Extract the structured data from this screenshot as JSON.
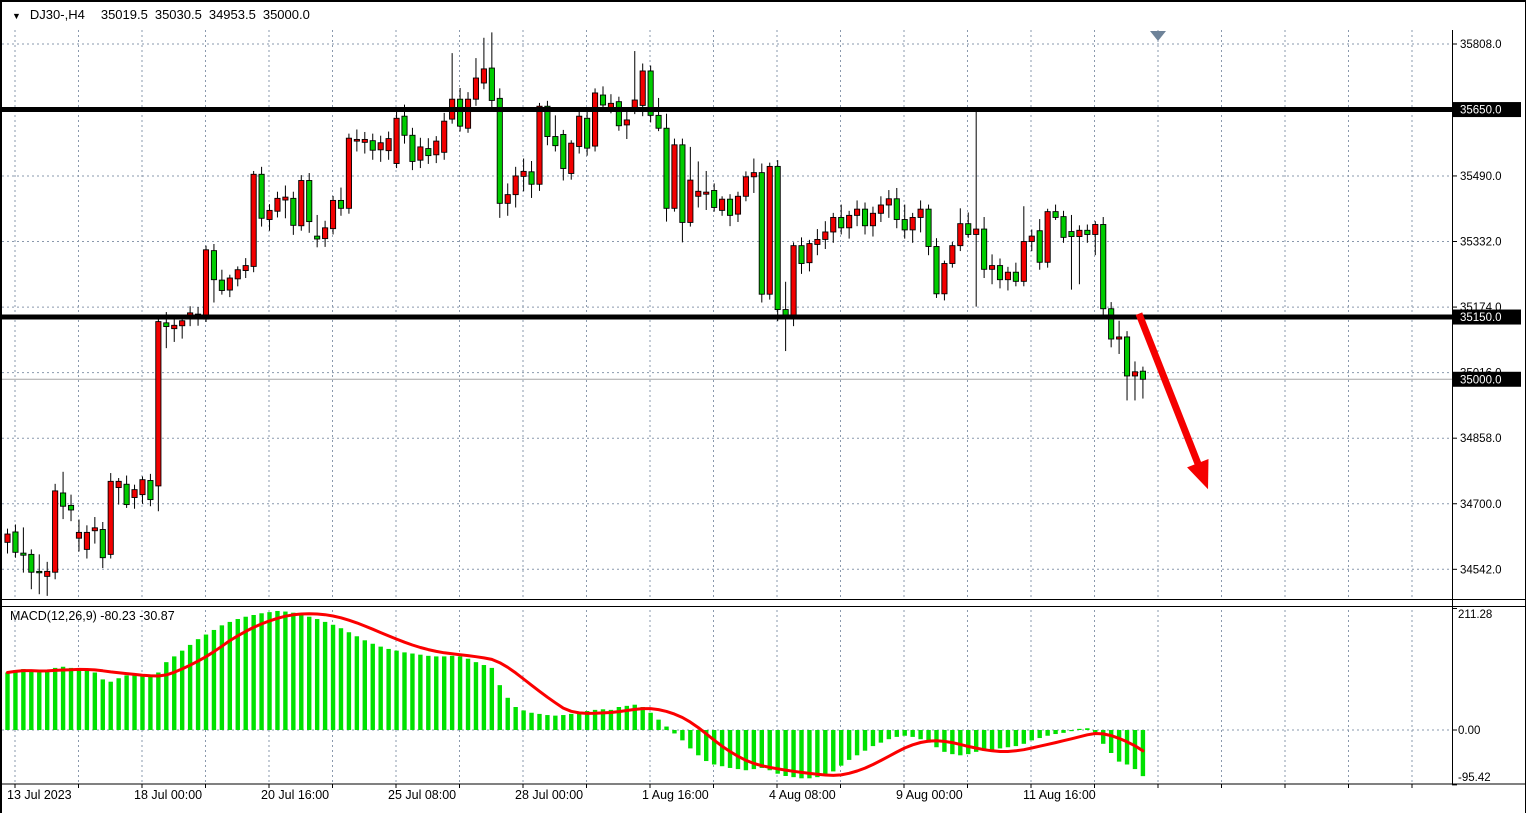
{
  "titlebar": {
    "dropdown_icon": "▼",
    "symbol_period": "DJ30-,H4",
    "open": "35019.5",
    "high": "35030.5",
    "low": "34953.5",
    "close": "35000.0"
  },
  "indicator_label": {
    "text": "MACD(12,26,9) -80.23 -30.87"
  },
  "price_axis": {
    "ticks": [
      {
        "text": "35808.0",
        "value": 35808
      },
      {
        "text": "35490.0",
        "value": 35490
      },
      {
        "text": "35332.0",
        "value": 35332
      },
      {
        "text": "35174.0",
        "value": 35174
      },
      {
        "text": "35016.0",
        "value": 35016
      },
      {
        "text": "34858.0",
        "value": 34858
      },
      {
        "text": "34700.0",
        "value": 34700
      },
      {
        "text": "34542.0",
        "value": 34542
      }
    ],
    "gridline_values": [
      35808,
      35650,
      35490,
      35332,
      35174,
      35016,
      34858,
      34700,
      34542
    ],
    "badges": [
      {
        "text": "35650.0",
        "value": 35650
      },
      {
        "text": "35150.0",
        "value": 35150
      },
      {
        "text": "35000.0",
        "value": 35000
      }
    ]
  },
  "macd_axis": {
    "ticks": [
      {
        "text": "211.28",
        "value": 211.28
      },
      {
        "text": "0.00",
        "value": 0
      },
      {
        "text": "-95.42",
        "value": -95.42
      }
    ]
  },
  "time_axis": {
    "labels": [
      {
        "text": "13 Jul 2023",
        "gridline": 0
      },
      {
        "text": "18 Jul 00:00",
        "gridline": 2
      },
      {
        "text": "20 Jul 16:00",
        "gridline": 4
      },
      {
        "text": "25 Jul 08:00",
        "gridline": 6
      },
      {
        "text": "28 Jul 00:00",
        "gridline": 8
      },
      {
        "text": "1 Aug 16:00",
        "gridline": 10
      },
      {
        "text": "4 Aug 08:00",
        "gridline": 12
      },
      {
        "text": "9 Aug 00:00",
        "gridline": 14
      },
      {
        "text": "11 Aug 16:00",
        "gridline": 16
      }
    ]
  },
  "chart_data": {
    "type": "candlestick",
    "symbol": "DJ30-",
    "timeframe": "H4",
    "title": "DJ30-,H4 35019.5 35030.5 34953.5 35000.0",
    "ylim": [
      34465,
      35840
    ],
    "grid": true,
    "last_ohlc": {
      "open": 35019.5,
      "high": 35030.5,
      "low": 34953.5,
      "close": 35000.0
    },
    "levels": [
      {
        "price": 35650,
        "style": "thick"
      },
      {
        "price": 35150,
        "style": "thick"
      },
      {
        "price": 35000,
        "style": "thin"
      }
    ],
    "candles": [
      [
        34607,
        34640,
        34580,
        34627
      ],
      [
        34632,
        34650,
        34570,
        34583
      ],
      [
        34581,
        34643,
        34534,
        34576
      ],
      [
        34578,
        34590,
        34494,
        34535
      ],
      [
        34537,
        34578,
        34482,
        34534
      ],
      [
        34525,
        34560,
        34478,
        34537
      ],
      [
        34535,
        34748,
        34518,
        34731
      ],
      [
        34726,
        34777,
        34663,
        34694
      ],
      [
        34696,
        34722,
        34658,
        34685
      ],
      [
        34617,
        34662,
        34585,
        34631
      ],
      [
        34590,
        34648,
        34568,
        34631
      ],
      [
        34635,
        34668,
        34604,
        34642
      ],
      [
        34638,
        34656,
        34545,
        34570
      ],
      [
        34578,
        34774,
        34568,
        34754
      ],
      [
        34739,
        34762,
        34698,
        34754
      ],
      [
        34747,
        34768,
        34690,
        34698
      ],
      [
        34715,
        34746,
        34688,
        34734
      ],
      [
        34722,
        34766,
        34700,
        34758
      ],
      [
        34756,
        34772,
        34694,
        34710
      ],
      [
        34743,
        35148,
        34682,
        35139
      ],
      [
        35136,
        35162,
        35075,
        35127
      ],
      [
        35122,
        35150,
        35090,
        35130
      ],
      [
        35129,
        35154,
        35098,
        35141
      ],
      [
        35150,
        35176,
        35128,
        35160
      ],
      [
        35157,
        35174,
        35129,
        35148
      ],
      [
        35145,
        35322,
        35138,
        35312
      ],
      [
        35310,
        35326,
        35185,
        35240
      ],
      [
        35239,
        35264,
        35204,
        35214
      ],
      [
        35215,
        35252,
        35198,
        35244
      ],
      [
        35242,
        35272,
        35224,
        35264
      ],
      [
        35262,
        35292,
        35244,
        35274
      ],
      [
        35272,
        35502,
        35258,
        35494
      ],
      [
        35494,
        35512,
        35368,
        35388
      ],
      [
        35385,
        35422,
        35358,
        35407
      ],
      [
        35405,
        35452,
        35390,
        35436
      ],
      [
        35432,
        35467,
        35388,
        35439
      ],
      [
        35436,
        35452,
        35348,
        35371
      ],
      [
        35370,
        35492,
        35358,
        35479
      ],
      [
        35479,
        35497,
        35353,
        35380
      ],
      [
        35345,
        35396,
        35318,
        35338
      ],
      [
        35339,
        35382,
        35319,
        35365
      ],
      [
        35363,
        35442,
        35349,
        35431
      ],
      [
        35431,
        35462,
        35394,
        35412
      ],
      [
        35412,
        35592,
        35399,
        35581
      ],
      [
        35574,
        35602,
        35549,
        35578
      ],
      [
        35571,
        35596,
        35544,
        35578
      ],
      [
        35575,
        35592,
        35529,
        35552
      ],
      [
        35553,
        35587,
        35524,
        35570
      ],
      [
        35551,
        35597,
        35529,
        35580
      ],
      [
        35520,
        35649,
        35509,
        35629
      ],
      [
        35634,
        35662,
        35568,
        35588
      ],
      [
        35588,
        35606,
        35504,
        35525
      ],
      [
        35528,
        35582,
        35509,
        35560
      ],
      [
        35556,
        35581,
        35519,
        35539
      ],
      [
        35541,
        35586,
        35521,
        35574
      ],
      [
        35547,
        35642,
        35529,
        35622
      ],
      [
        35627,
        35786,
        35616,
        35675
      ],
      [
        35675,
        35702,
        35597,
        35610
      ],
      [
        35605,
        35692,
        35594,
        35675
      ],
      [
        35675,
        35774,
        35659,
        35726
      ],
      [
        35714,
        35823,
        35699,
        35748
      ],
      [
        35750,
        35836,
        35654,
        35672
      ],
      [
        35677,
        35701,
        35389,
        35424
      ],
      [
        35424,
        35472,
        35394,
        35445
      ],
      [
        35445,
        35512,
        35414,
        35490
      ],
      [
        35489,
        35532,
        35453,
        35501
      ],
      [
        35500,
        35526,
        35437,
        35470
      ],
      [
        35470,
        35666,
        35454,
        35658
      ],
      [
        35658,
        35671,
        35564,
        35585
      ],
      [
        35585,
        35636,
        35549,
        35563
      ],
      [
        35590,
        35601,
        35479,
        35508
      ],
      [
        35496,
        35576,
        35481,
        35569
      ],
      [
        35561,
        35646,
        35544,
        35634
      ],
      [
        35629,
        35646,
        35539,
        35557
      ],
      [
        35562,
        35701,
        35549,
        35690
      ],
      [
        35685,
        35706,
        35644,
        35661
      ],
      [
        35655,
        35687,
        35641,
        35665
      ],
      [
        35669,
        35681,
        35599,
        35611
      ],
      [
        35613,
        35652,
        35579,
        35625
      ],
      [
        35653,
        35791,
        35639,
        35673
      ],
      [
        35660,
        35761,
        35634,
        35743
      ],
      [
        35743,
        35756,
        35619,
        35636
      ],
      [
        35636,
        35678,
        35598,
        35605
      ],
      [
        35605,
        35640,
        35380,
        35412
      ],
      [
        35412,
        35580,
        35404,
        35565
      ],
      [
        35565,
        35580,
        35330,
        35378
      ],
      [
        35378,
        35560,
        35368,
        35480
      ],
      [
        35441,
        35525,
        35414,
        35453
      ],
      [
        35446,
        35502,
        35408,
        35451
      ],
      [
        35455,
        35472,
        35404,
        35414
      ],
      [
        35407,
        35441,
        35394,
        35434
      ],
      [
        35434,
        35446,
        35369,
        35395
      ],
      [
        35398,
        35452,
        35379,
        35441
      ],
      [
        35441,
        35501,
        35429,
        35488
      ],
      [
        35488,
        35532,
        35449,
        35498
      ],
      [
        35498,
        35520,
        35185,
        35205
      ],
      [
        35205,
        35522,
        35192,
        35513
      ],
      [
        35513,
        35528,
        35140,
        35168
      ],
      [
        35168,
        35235,
        35068,
        35152
      ],
      [
        35152,
        35330,
        35128,
        35322
      ],
      [
        35322,
        35342,
        35254,
        35279
      ],
      [
        35281,
        35336,
        35260,
        35327
      ],
      [
        35325,
        35362,
        35299,
        35337
      ],
      [
        35337,
        35381,
        35314,
        35355
      ],
      [
        35355,
        35401,
        35329,
        35390
      ],
      [
        35390,
        35421,
        35349,
        35365
      ],
      [
        35365,
        35406,
        35339,
        35395
      ],
      [
        35395,
        35431,
        35369,
        35410
      ],
      [
        35410,
        35426,
        35349,
        35370
      ],
      [
        35370,
        35416,
        35344,
        35400
      ],
      [
        35400,
        35441,
        35379,
        35420
      ],
      [
        35420,
        35456,
        35389,
        35435
      ],
      [
        35435,
        35461,
        35364,
        35385
      ],
      [
        35385,
        35421,
        35339,
        35360
      ],
      [
        35360,
        35401,
        35329,
        35390
      ],
      [
        35390,
        35431,
        35354,
        35410
      ],
      [
        35410,
        35421,
        35299,
        35320
      ],
      [
        35320,
        35340,
        35196,
        35206
      ],
      [
        35206,
        35286,
        35190,
        35279
      ],
      [
        35279,
        35331,
        35269,
        35322
      ],
      [
        35322,
        35412,
        35309,
        35375
      ],
      [
        35375,
        35402,
        35341,
        35349
      ],
      [
        35349,
        35655,
        35175,
        35362
      ],
      [
        35362,
        35391,
        35244,
        35265
      ],
      [
        35265,
        35301,
        35229,
        35274
      ],
      [
        35274,
        35291,
        35219,
        35240
      ],
      [
        35240,
        35271,
        35214,
        35258
      ],
      [
        35258,
        35281,
        35224,
        35236
      ],
      [
        35236,
        35417,
        35224,
        35332
      ],
      [
        35332,
        35361,
        35309,
        35345
      ],
      [
        35358,
        35386,
        35264,
        35282
      ],
      [
        35282,
        35411,
        35269,
        35404
      ],
      [
        35404,
        35421,
        35384,
        35390
      ],
      [
        35392,
        35406,
        35329,
        35342
      ],
      [
        35356,
        35396,
        35216,
        35344
      ],
      [
        35344,
        35371,
        35229,
        35359
      ],
      [
        35359,
        35373,
        35329,
        35349
      ],
      [
        35349,
        35381,
        35299,
        35373
      ],
      [
        35373,
        35391,
        35152,
        35170
      ],
      [
        35170,
        35186,
        35077,
        35097
      ],
      [
        35097,
        35141,
        35061,
        35102
      ],
      [
        35102,
        35116,
        34949,
        35008
      ],
      [
        35008,
        35043,
        34949,
        35018
      ],
      [
        35019.5,
        35030.5,
        34953.5,
        35000.0
      ]
    ],
    "macd": {
      "label": "MACD(12,26,9)",
      "params": [
        12,
        26,
        9
      ],
      "current": -80.23,
      "current_signal": -30.87,
      "signal_period": 9,
      "scale_max": 211.28,
      "scale_min": -95.42,
      "histogram": [
        100,
        104,
        106,
        103,
        100,
        104,
        108,
        110,
        108,
        105,
        103,
        100,
        88,
        84,
        90,
        95,
        97,
        96,
        95,
        100,
        118,
        128,
        138,
        148,
        158,
        166,
        174,
        182,
        188,
        193,
        197,
        200,
        203,
        205,
        207,
        206,
        204,
        201,
        197,
        193,
        188,
        183,
        177,
        170,
        163,
        156,
        150,
        145,
        141,
        138,
        135,
        133,
        131,
        129,
        128,
        128,
        129,
        128,
        124,
        118,
        113,
        108,
        78,
        56,
        40,
        34,
        30,
        28,
        26,
        25,
        26,
        28,
        30,
        33,
        35,
        36,
        35,
        40,
        42,
        44,
        40,
        30,
        18,
        6,
        -6,
        -18,
        -32,
        -44,
        -54,
        -60,
        -63,
        -66,
        -68,
        -70,
        -68,
        -66,
        -70,
        -76,
        -80,
        -82,
        -84,
        -84,
        -82,
        -80,
        -72,
        -62,
        -52,
        -44,
        -36,
        -28,
        -22,
        -16,
        -12,
        -10,
        -12,
        -16,
        -22,
        -30,
        -38,
        -42,
        -44,
        -42,
        -38,
        -36,
        -34,
        -32,
        -30,
        -28,
        -24,
        -18,
        -14,
        -10,
        -7,
        -5,
        -2,
        2,
        3,
        -4,
        -24,
        -40,
        -55,
        -60,
        -68,
        -80.23
      ]
    },
    "annotations": [
      {
        "type": "arrow",
        "from_bar": 142.5,
        "from_price": 35158,
        "to_bar": 151.2,
        "to_price": 34735,
        "color": "#f50000"
      }
    ],
    "end_marker": {
      "type": "triangle-down",
      "gridline": 18
    }
  },
  "colors": {
    "background": "#ffffff",
    "up_candle": "#f20000",
    "down_candle": "#00cc00",
    "candle_outline": "#000000",
    "wick": "#000000",
    "grid": "#8a99ad",
    "level_line": "#000000",
    "current_price_line": "#a6a6a6",
    "histogram": "#00e100",
    "signal_line": "#fb0000",
    "badge_bg": "#000000",
    "badge_text": "#ffffff",
    "text": "#000000",
    "end_marker": "#6e8399",
    "arrow": "#f50000",
    "frame_bottom": "#b9b9b9"
  }
}
